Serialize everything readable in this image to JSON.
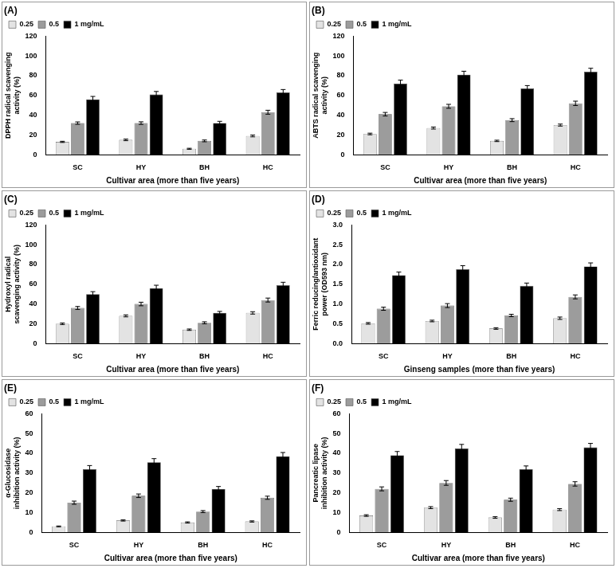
{
  "chart_data": [
    {
      "type": "bar",
      "title": "(A)",
      "x_label": "Cultivar area (more than five years)",
      "y_label": "DPPH radical scavenging activity (%)",
      "categories": [
        "SC",
        "HY",
        "BH",
        "HC"
      ],
      "series": [
        {
          "name": "0.25",
          "color": "#e3e3e3",
          "values": [
            13,
            15,
            6,
            19
          ],
          "errors": [
            0.6,
            0.8,
            0.5,
            0.9
          ]
        },
        {
          "name": "0.5",
          "color": "#9c9c9c",
          "values": [
            32,
            32,
            14,
            43
          ],
          "errors": [
            1.2,
            1.3,
            0.9,
            2.0
          ]
        },
        {
          "name": "1 mg/mL",
          "color": "#000000",
          "values": [
            56,
            61,
            32,
            63
          ],
          "errors": [
            3.0,
            3.0,
            1.8,
            3.0
          ]
        }
      ],
      "ylim": [
        0,
        120
      ],
      "yticks": [
        0,
        20,
        40,
        60,
        80,
        100,
        120
      ],
      "grid": false,
      "legend": "top-left"
    },
    {
      "type": "bar",
      "title": "(B)",
      "x_label": "Cultivar area (more than five years)",
      "y_label": "ABTS radical scavenging activity (%)",
      "categories": [
        "SC",
        "HY",
        "BH",
        "HC"
      ],
      "series": [
        {
          "name": "0.25",
          "color": "#e3e3e3",
          "values": [
            21,
            27,
            14,
            30
          ],
          "errors": [
            0.8,
            1.0,
            0.7,
            1.0
          ]
        },
        {
          "name": "0.5",
          "color": "#9c9c9c",
          "values": [
            41,
            49,
            35,
            52
          ],
          "errors": [
            1.8,
            2.0,
            1.5,
            2.2
          ]
        },
        {
          "name": "1 mg/mL",
          "color": "#000000",
          "values": [
            72,
            81,
            67,
            84
          ],
          "errors": [
            3.5,
            3.5,
            3.0,
            3.5
          ]
        }
      ],
      "ylim": [
        0,
        120
      ],
      "yticks": [
        0,
        20,
        40,
        60,
        80,
        100,
        120
      ],
      "grid": false,
      "legend": "top-left"
    },
    {
      "type": "bar",
      "title": "(C)",
      "x_label": "Cultivar area (more than five years)",
      "y_label": "Hydroxyl radical scavenging activity (%)",
      "categories": [
        "SC",
        "HY",
        "BH",
        "HC"
      ],
      "series": [
        {
          "name": "0.25",
          "color": "#e3e3e3",
          "values": [
            20,
            28,
            14,
            31
          ],
          "errors": [
            0.8,
            1.0,
            0.7,
            1.2
          ]
        },
        {
          "name": "0.5",
          "color": "#9c9c9c",
          "values": [
            36,
            40,
            21,
            44
          ],
          "errors": [
            1.5,
            1.8,
            1.0,
            2.0
          ]
        },
        {
          "name": "1 mg/mL",
          "color": "#000000",
          "values": [
            50,
            56,
            31,
            59
          ],
          "errors": [
            2.5,
            3.0,
            1.5,
            3.0
          ]
        }
      ],
      "ylim": [
        0,
        120
      ],
      "yticks": [
        0,
        20,
        40,
        60,
        80,
        100,
        120
      ],
      "grid": false,
      "legend": "top-left"
    },
    {
      "type": "bar",
      "title": "(D)",
      "x_label": "Ginseng samples (more than five years)",
      "y_label": "Ferric reducing/antioxidant power (OD593 nm)",
      "categories": [
        "SC",
        "HY",
        "BH",
        "HC"
      ],
      "series": [
        {
          "name": "0.25",
          "color": "#e3e3e3",
          "values": [
            0.51,
            0.57,
            0.38,
            0.64
          ],
          "errors": [
            0.02,
            0.02,
            0.02,
            0.03
          ]
        },
        {
          "name": "0.5",
          "color": "#9c9c9c",
          "values": [
            0.88,
            0.96,
            0.71,
            1.18
          ],
          "errors": [
            0.04,
            0.05,
            0.03,
            0.05
          ]
        },
        {
          "name": "1 mg/mL",
          "color": "#000000",
          "values": [
            1.73,
            1.88,
            1.46,
            1.95
          ],
          "errors": [
            0.08,
            0.09,
            0.07,
            0.09
          ]
        }
      ],
      "ylim": [
        0,
        3
      ],
      "yticks": [
        {
          "value": 0,
          "label": "0.0"
        },
        0.5,
        {
          "value": 1,
          "label": "1.0"
        },
        1.5,
        {
          "value": 2,
          "label": "2.0"
        },
        2.5,
        {
          "value": 3,
          "label": "3.0"
        }
      ],
      "grid": false,
      "legend": "top-left"
    },
    {
      "type": "bar",
      "title": "(E)",
      "x_label": "Cultivar area (more than five years)",
      "y_label": "α-Glucosidase inhibition activity (%)",
      "categories": [
        "SC",
        "HY",
        "BH",
        "HC"
      ],
      "series": [
        {
          "name": "0.25",
          "color": "#e3e3e3",
          "values": [
            3,
            6,
            5,
            5.5
          ],
          "errors": [
            0.2,
            0.3,
            0.3,
            0.3
          ]
        },
        {
          "name": "0.5",
          "color": "#9c9c9c",
          "values": [
            15,
            18.5,
            10.5,
            17.5
          ],
          "errors": [
            0.8,
            0.9,
            0.5,
            0.8
          ]
        },
        {
          "name": "1 mg/mL",
          "color": "#000000",
          "values": [
            32,
            35.5,
            22,
            38.5
          ],
          "errors": [
            1.8,
            1.8,
            1.2,
            1.9
          ]
        }
      ],
      "ylim": [
        0,
        60
      ],
      "yticks": [
        0,
        10,
        20,
        30,
        40,
        50,
        60
      ],
      "grid": false,
      "legend": "top-left"
    },
    {
      "type": "bar",
      "title": "(F)",
      "x_label": "Cultivar area (more than five years)",
      "y_label": "Pancreatic lipase inhibition activity (%)",
      "categories": [
        "SC",
        "HY",
        "BH",
        "HC"
      ],
      "series": [
        {
          "name": "0.25",
          "color": "#e3e3e3",
          "values": [
            8.5,
            12.5,
            7.5,
            11.5
          ],
          "errors": [
            0.4,
            0.5,
            0.4,
            0.5
          ]
        },
        {
          "name": "0.5",
          "color": "#9c9c9c",
          "values": [
            22,
            25,
            16.5,
            24.5
          ],
          "errors": [
            1.0,
            1.2,
            0.8,
            1.1
          ]
        },
        {
          "name": "1 mg/mL",
          "color": "#000000",
          "values": [
            39,
            42.5,
            32,
            43
          ],
          "errors": [
            1.9,
            2.0,
            1.6,
            2.0
          ]
        }
      ],
      "ylim": [
        0,
        60
      ],
      "yticks": [
        0,
        10,
        20,
        30,
        40,
        50,
        60
      ],
      "grid": false,
      "legend": "top-left"
    }
  ]
}
